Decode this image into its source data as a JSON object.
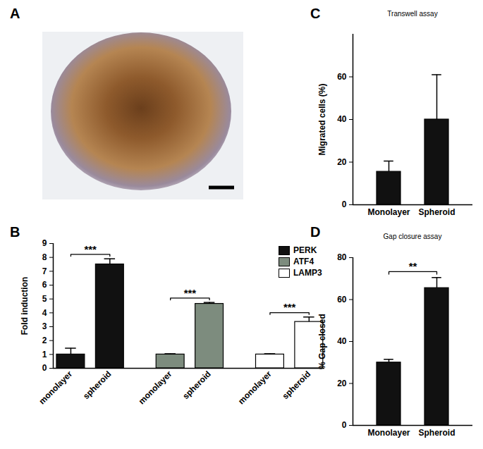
{
  "chart_data": [
    {
      "type": "image",
      "panel": "A"
    },
    {
      "type": "bar",
      "panel": "B",
      "categories": [
        "monolayer",
        "spheroid",
        "monolayer",
        "spheroid",
        "monolayer",
        "spheroid"
      ],
      "ylabel": "Fold induction",
      "ylim": [
        0,
        9
      ],
      "yticks": [
        0,
        1,
        2,
        3,
        4,
        5,
        6,
        7,
        8,
        9
      ],
      "legend": "top-right",
      "series": [
        {
          "name": "PERK",
          "color": "#111111",
          "values": [
            1.0,
            7.5,
            null,
            null,
            null,
            null
          ],
          "errors": [
            0.45,
            0.4,
            null,
            null,
            null,
            null
          ]
        },
        {
          "name": "ATF4",
          "color": "#7d8c7e",
          "values": [
            null,
            null,
            1.0,
            4.65,
            null,
            null
          ],
          "errors": [
            null,
            null,
            0.05,
            0.1,
            null,
            null
          ]
        },
        {
          "name": "LAMP3",
          "color": "#ffffff",
          "values": [
            null,
            null,
            null,
            null,
            1.0,
            3.35
          ],
          "errors": [
            null,
            null,
            null,
            null,
            0.05,
            0.35
          ]
        }
      ],
      "significance": [
        {
          "label": "***",
          "between": [
            0,
            1
          ]
        },
        {
          "label": "***",
          "between": [
            2,
            3
          ]
        },
        {
          "label": "***",
          "between": [
            4,
            5
          ]
        }
      ]
    },
    {
      "type": "bar",
      "panel": "C",
      "title": "Transwell assay",
      "categories": [
        "Monolayer",
        "Spheroid"
      ],
      "values": [
        15.5,
        40
      ],
      "errors": [
        5,
        21
      ],
      "color": "#111111",
      "ylabel": "Migrated cells (%)",
      "ylim": [
        0,
        80
      ],
      "yticks": [
        0,
        20,
        40,
        60
      ]
    },
    {
      "type": "bar",
      "panel": "D",
      "title": "Gap closure assay",
      "categories": [
        "Monolayer",
        "Spheroid"
      ],
      "values": [
        30,
        65.5
      ],
      "errors": [
        1.5,
        5
      ],
      "color": "#111111",
      "ylabel": "% Gap closed",
      "ylim": [
        0,
        80
      ],
      "yticks": [
        0,
        20,
        40,
        60,
        80
      ],
      "significance": [
        {
          "label": "**",
          "between": [
            0,
            1
          ]
        }
      ]
    }
  ]
}
